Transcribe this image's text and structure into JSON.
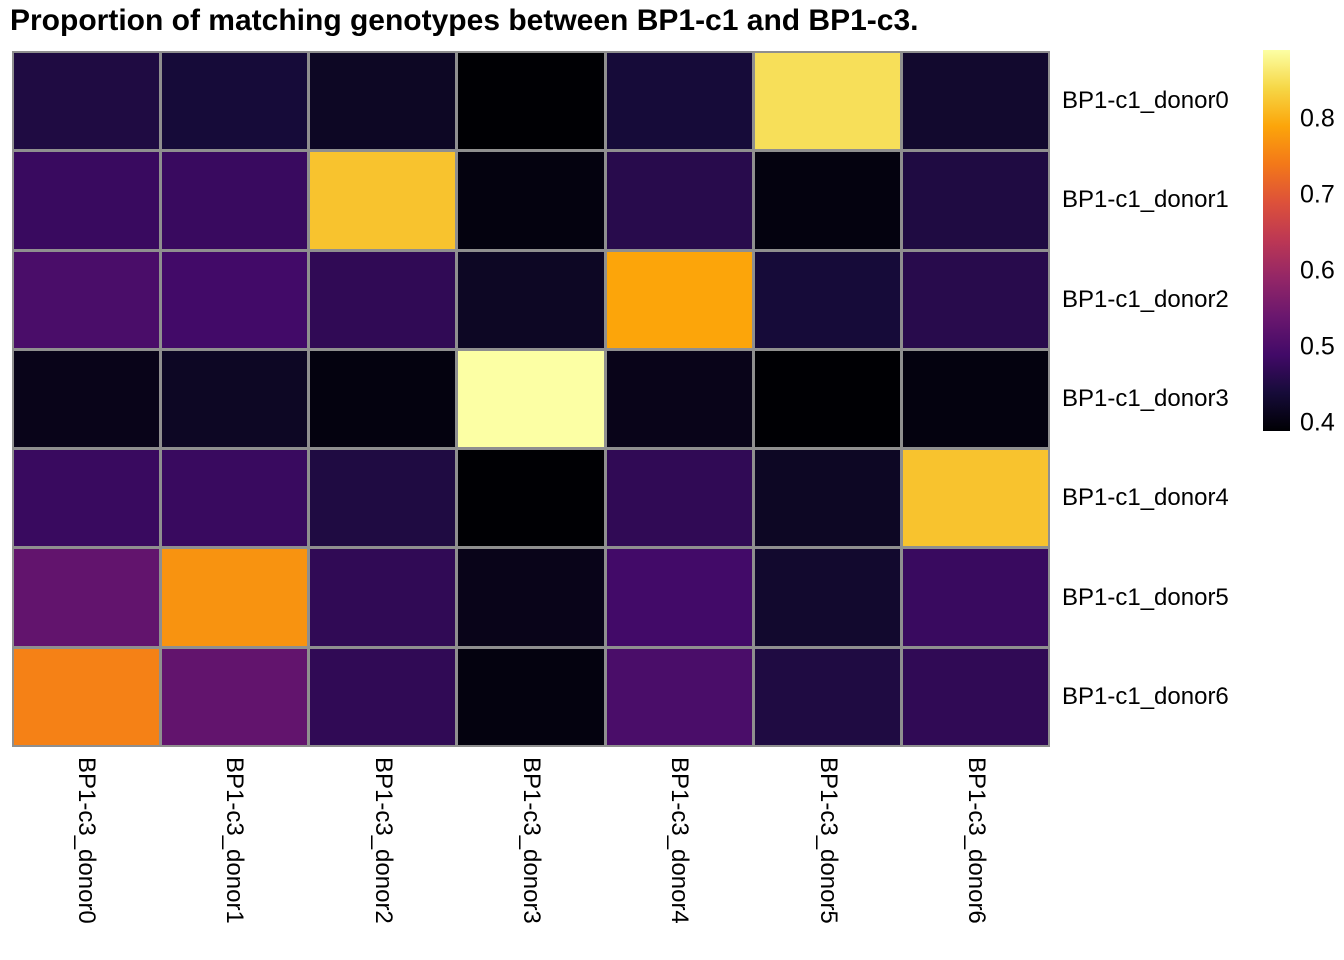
{
  "title": "Proportion of matching genotypes between BP1-c1 and BP1-c3.",
  "chart_data": {
    "type": "heatmap",
    "title": "Proportion of matching genotypes between BP1-c1 and BP1-c3.",
    "rows": [
      "BP1-c1_donor0",
      "BP1-c1_donor1",
      "BP1-c1_donor2",
      "BP1-c1_donor3",
      "BP1-c1_donor4",
      "BP1-c1_donor5",
      "BP1-c1_donor6"
    ],
    "columns": [
      "BP1-c3_donor0",
      "BP1-c3_donor1",
      "BP1-c3_donor2",
      "BP1-c3_donor3",
      "BP1-c3_donor4",
      "BP1-c3_donor5",
      "BP1-c3_donor6"
    ],
    "values": [
      [
        0.45,
        0.44,
        0.42,
        0.39,
        0.44,
        0.85,
        0.43
      ],
      [
        0.48,
        0.48,
        0.82,
        0.4,
        0.46,
        0.4,
        0.45
      ],
      [
        0.5,
        0.49,
        0.47,
        0.42,
        0.79,
        0.44,
        0.46
      ],
      [
        0.41,
        0.42,
        0.4,
        0.89,
        0.41,
        0.39,
        0.4
      ],
      [
        0.48,
        0.48,
        0.45,
        0.39,
        0.47,
        0.42,
        0.82
      ],
      [
        0.53,
        0.77,
        0.47,
        0.41,
        0.49,
        0.43,
        0.48
      ],
      [
        0.75,
        0.53,
        0.47,
        0.4,
        0.5,
        0.45,
        0.47
      ]
    ],
    "colormap": "inferno",
    "vmin": 0.39,
    "vmax": 0.89,
    "colorbar_ticks": [
      0.8,
      0.7,
      0.6,
      0.5,
      0.4
    ],
    "colorbar_position": "right",
    "grid_on": true,
    "grid_color": "#8f8f8f",
    "background_color": "#ffffff",
    "title_color": "#000000"
  }
}
